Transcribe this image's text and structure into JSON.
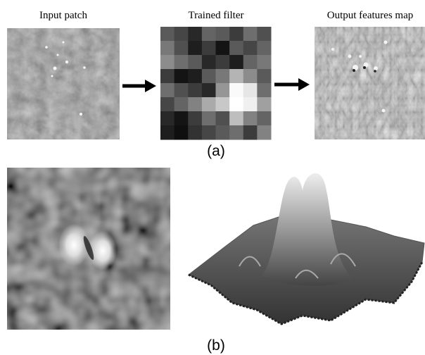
{
  "panel_a": {
    "input_label": "Input patch",
    "filter_label": "Trained filter",
    "output_label": "Output features map",
    "caption": "(a)"
  },
  "panel_b": {
    "caption": "(b)"
  }
}
